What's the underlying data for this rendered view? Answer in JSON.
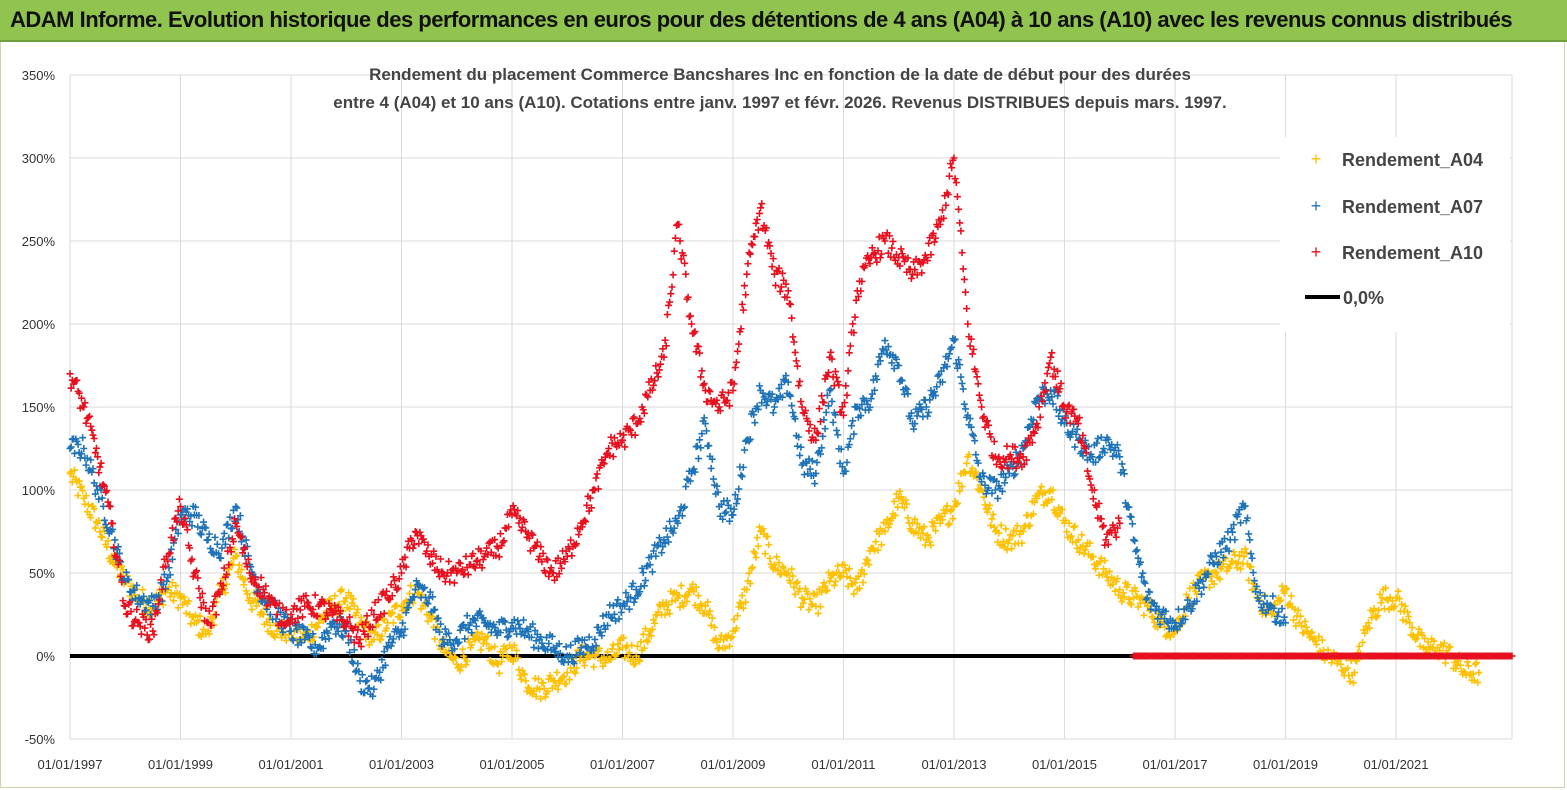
{
  "header": {
    "title": "ADAM Informe. Evolution historique des performances en euros pour des détentions de 4 ans (A04) à 10 ans (A10) avec les revenus connus distribués"
  },
  "chart_data": {
    "type": "scatter",
    "title_line1": "Rendement du placement Commerce Bancshares Inc en fonction de la date de début pour des durées",
    "title_line2": "entre 4 (A04) et 10 ans (A10). Cotations entre janv. 1997 et févr. 2026. Revenus DISTRIBUES depuis mars. 1997.",
    "xlabel": "",
    "ylabel": "",
    "y_ticks": [
      "-50%",
      "0%",
      "50%",
      "100%",
      "150%",
      "200%",
      "250%",
      "300%",
      "350%"
    ],
    "y_tick_values": [
      -50,
      0,
      50,
      100,
      150,
      200,
      250,
      300,
      350
    ],
    "ylim": [
      -50,
      350
    ],
    "x_ticks": [
      "01/01/1997",
      "01/01/1999",
      "01/01/2001",
      "01/01/2003",
      "01/01/2005",
      "01/01/2007",
      "01/01/2009",
      "01/01/2011",
      "01/01/2013",
      "01/01/2015",
      "01/01/2017",
      "01/01/2019",
      "01/01/2021"
    ],
    "x_tick_years": [
      1997,
      1999,
      2001,
      2003,
      2005,
      2007,
      2009,
      2011,
      2013,
      2015,
      2017,
      2019,
      2021
    ],
    "xlim": [
      1997.0,
      2023.1
    ],
    "grid": true,
    "legend_position": "top-right",
    "zero_line_label": "0,0%",
    "colors": {
      "A04": "#ffc000",
      "A07": "#1f73b8",
      "A10": "#e8101e",
      "zero": "#000000"
    },
    "series": [
      {
        "name": "Rendement_A04",
        "key": "A04",
        "x": [
          1997.0,
          1997.25,
          1997.5,
          1997.75,
          1998.0,
          1998.25,
          1998.5,
          1998.75,
          1999.0,
          1999.25,
          1999.5,
          1999.75,
          2000.0,
          2000.25,
          2000.5,
          2000.75,
          2001.0,
          2001.25,
          2001.5,
          2001.75,
          2002.0,
          2002.25,
          2002.5,
          2002.75,
          2003.0,
          2003.25,
          2003.5,
          2003.75,
          2004.0,
          2004.25,
          2004.5,
          2004.75,
          2005.0,
          2005.25,
          2005.5,
          2005.75,
          2006.0,
          2006.25,
          2006.5,
          2006.75,
          2007.0,
          2007.25,
          2007.5,
          2007.75,
          2008.0,
          2008.25,
          2008.5,
          2008.75,
          2009.0,
          2009.25,
          2009.5,
          2009.75,
          2010.0,
          2010.25,
          2010.5,
          2010.75,
          2011.0,
          2011.25,
          2011.5,
          2011.75,
          2012.0,
          2012.25,
          2012.5,
          2012.75,
          2013.0,
          2013.25,
          2013.5,
          2013.75,
          2014.0,
          2014.25,
          2014.5,
          2014.75,
          2015.0,
          2015.25,
          2015.5,
          2015.75,
          2016.0,
          2016.25,
          2016.5,
          2016.75,
          2017.0,
          2017.25,
          2017.5,
          2017.75,
          2018.0,
          2018.25,
          2018.5,
          2018.75,
          2019.0,
          2019.25,
          2019.5,
          2019.75,
          2020.0,
          2020.25,
          2020.5,
          2020.75,
          2021.0,
          2021.25,
          2021.5,
          2021.75,
          2022.0,
          2022.25,
          2022.5
        ],
        "values": [
          110,
          95,
          80,
          60,
          45,
          35,
          30,
          40,
          35,
          20,
          15,
          40,
          60,
          35,
          25,
          15,
          15,
          10,
          20,
          30,
          35,
          20,
          10,
          20,
          30,
          40,
          25,
          5,
          -5,
          5,
          10,
          -5,
          5,
          -15,
          -20,
          -15,
          -10,
          0,
          0,
          -2,
          5,
          0,
          15,
          30,
          35,
          40,
          30,
          5,
          15,
          40,
          75,
          55,
          50,
          35,
          30,
          45,
          50,
          40,
          65,
          75,
          95,
          80,
          70,
          80,
          90,
          120,
          100,
          75,
          70,
          75,
          95,
          100,
          80,
          70,
          60,
          50,
          40,
          35,
          30,
          20,
          15,
          35,
          45,
          50,
          55,
          60,
          35,
          25,
          40,
          20,
          10,
          0,
          -5,
          -10,
          20,
          35,
          35,
          20,
          5,
          5,
          0,
          -10,
          -10
        ]
      },
      {
        "name": "Rendement_A07",
        "key": "A07",
        "x": [
          1997.0,
          1997.25,
          1997.5,
          1997.75,
          1998.0,
          1998.25,
          1998.5,
          1998.75,
          1999.0,
          1999.25,
          1999.5,
          1999.75,
          2000.0,
          2000.25,
          2000.5,
          2000.75,
          2001.0,
          2001.25,
          2001.5,
          2001.75,
          2002.0,
          2002.25,
          2002.5,
          2002.75,
          2003.0,
          2003.25,
          2003.5,
          2003.75,
          2004.0,
          2004.25,
          2004.5,
          2004.75,
          2005.0,
          2005.25,
          2005.5,
          2005.75,
          2006.0,
          2006.25,
          2006.5,
          2006.75,
          2007.0,
          2007.25,
          2007.5,
          2007.75,
          2008.0,
          2008.25,
          2008.5,
          2008.75,
          2009.0,
          2009.25,
          2009.5,
          2009.75,
          2010.0,
          2010.25,
          2010.5,
          2010.75,
          2011.0,
          2011.25,
          2011.5,
          2011.75,
          2012.0,
          2012.25,
          2012.5,
          2012.75,
          2013.0,
          2013.25,
          2013.5,
          2013.75,
          2014.0,
          2014.25,
          2014.5,
          2014.75,
          2015.0,
          2015.25,
          2015.5,
          2015.75,
          2016.0,
          2016.25,
          2016.5,
          2016.75,
          2017.0,
          2017.25,
          2017.5,
          2017.75,
          2018.0,
          2018.25,
          2018.5,
          2018.75,
          2019.0
        ],
        "values": [
          125,
          125,
          100,
          75,
          45,
          35,
          30,
          45,
          85,
          85,
          70,
          65,
          90,
          55,
          35,
          25,
          15,
          10,
          5,
          20,
          15,
          -15,
          -20,
          5,
          15,
          40,
          35,
          10,
          10,
          20,
          20,
          15,
          20,
          15,
          10,
          5,
          0,
          5,
          10,
          25,
          30,
          40,
          55,
          70,
          80,
          110,
          140,
          90,
          85,
          130,
          160,
          150,
          165,
          115,
          110,
          160,
          110,
          150,
          155,
          190,
          175,
          140,
          150,
          165,
          190,
          145,
          105,
          100,
          110,
          125,
          155,
          160,
          140,
          130,
          120,
          130,
          120,
          70,
          35,
          25,
          20,
          30,
          45,
          60,
          70,
          90,
          35,
          30,
          20
        ]
      },
      {
        "name": "Rendement_A10",
        "key": "A10",
        "x": [
          1997.0,
          1997.25,
          1997.5,
          1997.75,
          1998.0,
          1998.25,
          1998.5,
          1998.75,
          1999.0,
          1999.25,
          1999.5,
          1999.75,
          2000.0,
          2000.25,
          2000.5,
          2000.75,
          2001.0,
          2001.25,
          2001.5,
          2001.75,
          2002.0,
          2002.25,
          2002.5,
          2002.75,
          2003.0,
          2003.25,
          2003.5,
          2003.75,
          2004.0,
          2004.25,
          2004.5,
          2004.75,
          2005.0,
          2005.25,
          2005.5,
          2005.75,
          2006.0,
          2006.25,
          2006.5,
          2006.75,
          2007.0,
          2007.25,
          2007.5,
          2007.75,
          2008.0,
          2008.25,
          2008.5,
          2008.75,
          2009.0,
          2009.25,
          2009.5,
          2009.75,
          2010.0,
          2010.25,
          2010.5,
          2010.75,
          2011.0,
          2011.25,
          2011.5,
          2011.75,
          2012.0,
          2012.25,
          2012.5,
          2012.75,
          2013.0,
          2013.25,
          2013.5,
          2013.75,
          2014.0,
          2014.25,
          2014.5,
          2014.75,
          2015.0,
          2015.25,
          2015.5,
          2015.75,
          2016.0
        ],
        "values": [
          170,
          150,
          120,
          80,
          30,
          20,
          15,
          60,
          90,
          50,
          20,
          40,
          80,
          50,
          40,
          25,
          25,
          30,
          30,
          25,
          20,
          10,
          25,
          35,
          50,
          75,
          60,
          50,
          50,
          55,
          60,
          65,
          85,
          75,
          60,
          50,
          60,
          80,
          100,
          125,
          130,
          140,
          160,
          180,
          260,
          200,
          160,
          150,
          160,
          230,
          270,
          230,
          220,
          150,
          130,
          180,
          145,
          220,
          240,
          250,
          240,
          230,
          240,
          260,
          300,
          200,
          150,
          120,
          120,
          120,
          140,
          180,
          150,
          140,
          100,
          70,
          80
        ]
      },
      {
        "name": "",
        "key": "A10_zero",
        "x": [
          2016.25,
          2023.1
        ],
        "values": [
          0,
          0
        ]
      }
    ]
  },
  "legend": {
    "items": [
      {
        "label": "Rendement_A04",
        "color": "#ffc000"
      },
      {
        "label": "Rendement_A07",
        "color": "#1f73b8"
      },
      {
        "label": "Rendement_A10",
        "color": "#e8101e"
      },
      {
        "label": "0,0%",
        "color": "#000000"
      }
    ]
  }
}
